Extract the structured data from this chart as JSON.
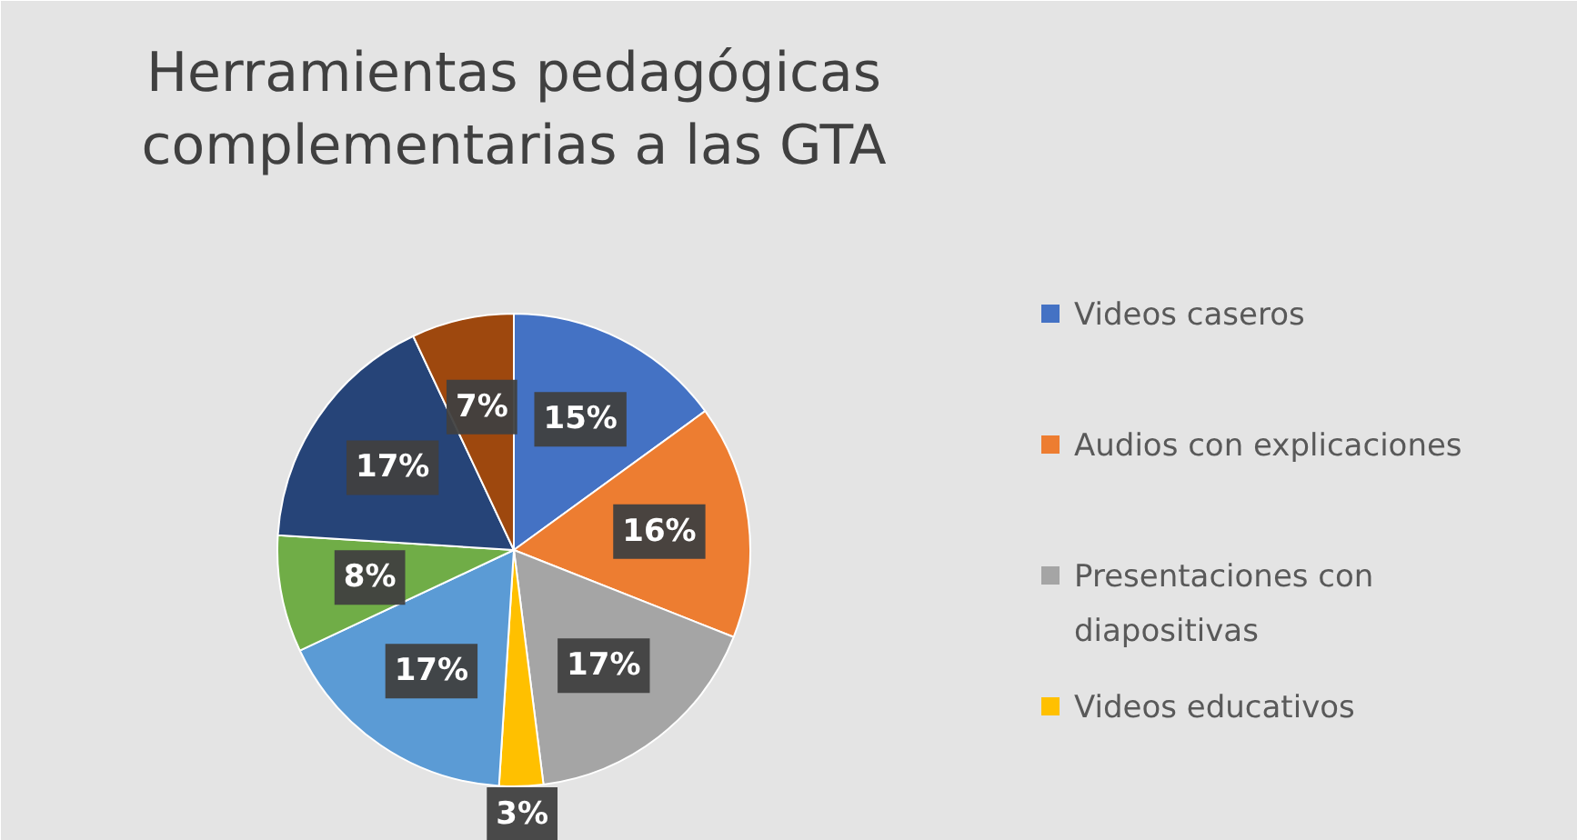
{
  "chart_data": {
    "type": "pie",
    "title": "Herramientas pedagógicas complementarias a las GTA",
    "categories": [
      "Videos caseros",
      "Audios con explicaciones",
      "Presentaciones con diapositivas",
      "Videos educativos",
      null,
      null,
      null,
      null
    ],
    "values": [
      15,
      16,
      17,
      3,
      17,
      8,
      17,
      7
    ],
    "colors": [
      "#4472c4",
      "#ed7d31",
      "#a5a5a5",
      "#ffc000",
      "#5b9bd5",
      "#70ad47",
      "#264478",
      "#9e480e"
    ],
    "value_labels": [
      "15%",
      "16%",
      "17%",
      "3%",
      "17%",
      "8%",
      "17%",
      "7%"
    ],
    "legend": "right"
  }
}
